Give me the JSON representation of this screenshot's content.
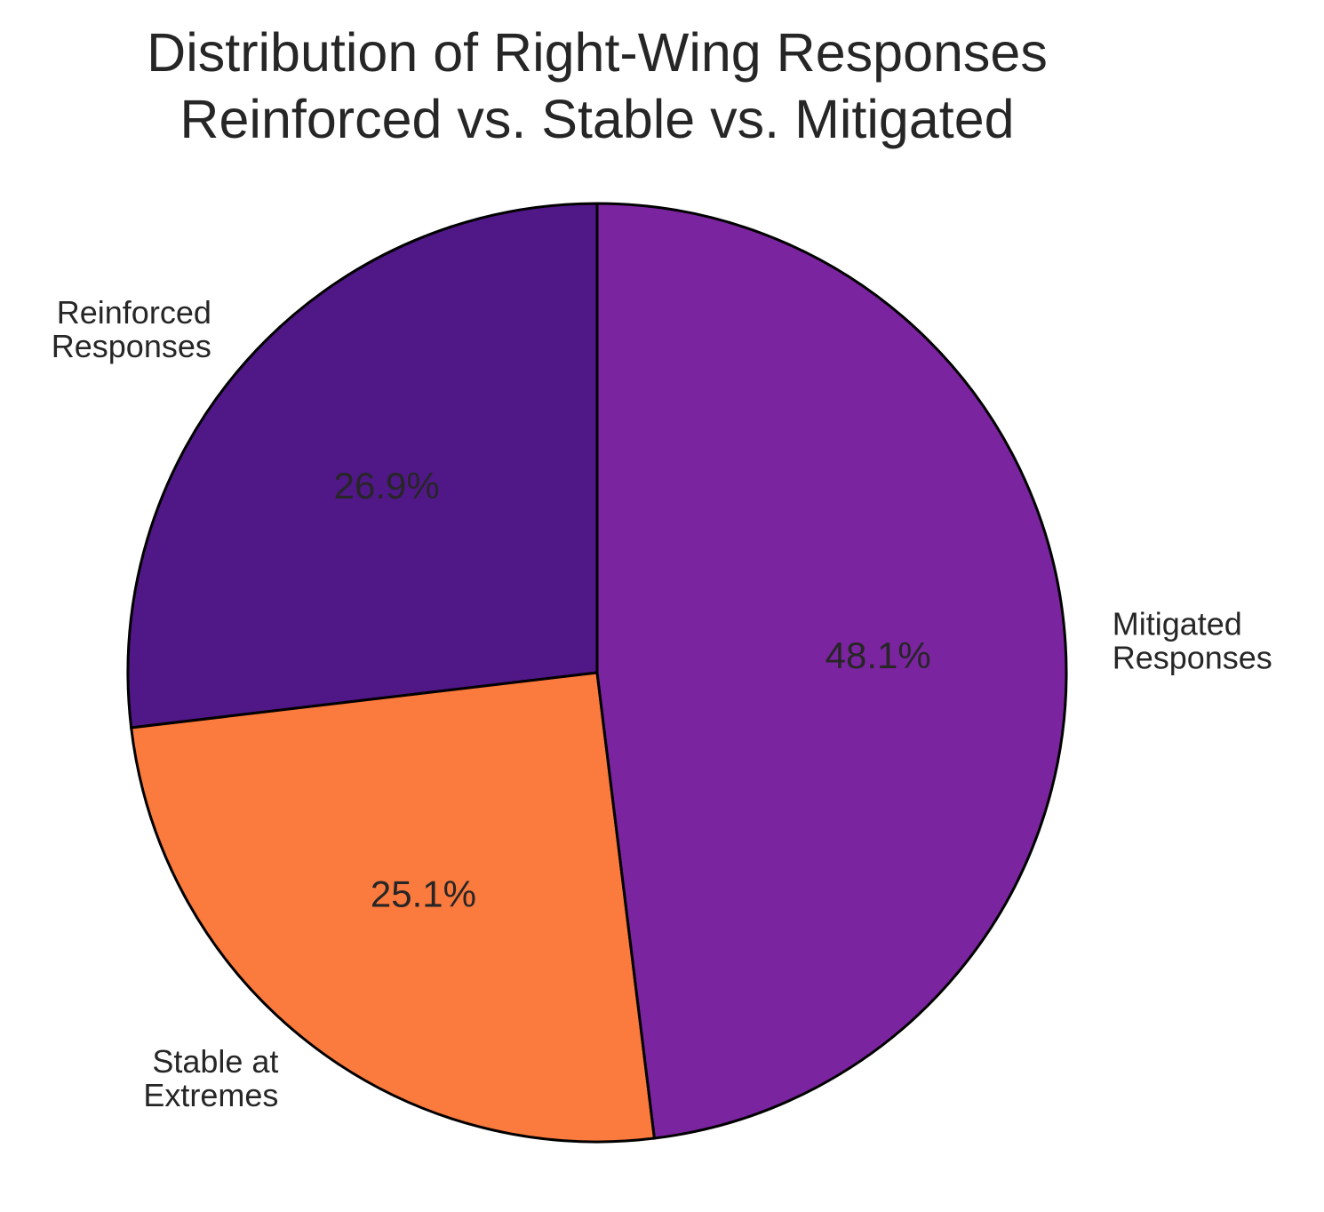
{
  "chart_data": {
    "type": "pie",
    "title_lines": [
      "Distribution of Right-Wing Responses",
      "Reinforced vs. Stable vs. Mitigated"
    ],
    "start_angle_deg": 90,
    "direction": "counterclockwise",
    "slices": [
      {
        "label_lines": [
          "Reinforced",
          "Responses"
        ],
        "value": 26.9,
        "pct_label": "26.9%",
        "color": "#501787"
      },
      {
        "label_lines": [
          "Stable at",
          "Extremes"
        ],
        "value": 25.1,
        "pct_label": "25.1%",
        "color": "#FB7A3D"
      },
      {
        "label_lines": [
          "Mitigated",
          "Responses"
        ],
        "value": 48.1,
        "pct_label": "48.1%",
        "color": "#7B24A0"
      }
    ]
  }
}
